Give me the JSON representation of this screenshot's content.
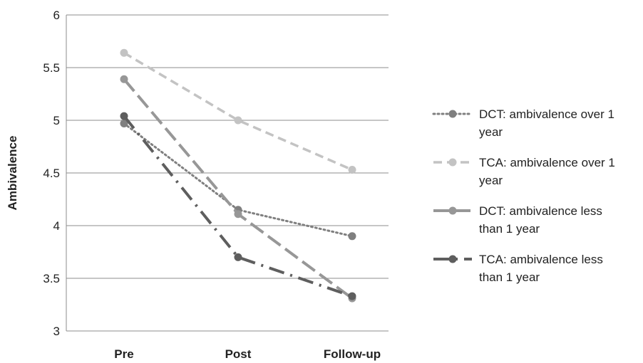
{
  "chart_data": {
    "type": "line",
    "title": "",
    "xlabel": "",
    "ylabel": "Ambivalence",
    "categories": [
      "Pre",
      "Post",
      "Follow-up"
    ],
    "ylim": [
      3,
      6
    ],
    "yticks": [
      "3",
      "3.5",
      "4",
      "4.5",
      "5",
      "5.5",
      "6"
    ],
    "grid": true,
    "legend_position": "right",
    "series": [
      {
        "name": "DCT: ambivalence over 1 year",
        "legend_lines": [
          "DCT: ambivalence over 1",
          "year"
        ],
        "values": [
          4.97,
          4.15,
          3.9
        ],
        "color": "#7f7f7f",
        "style": "dotted"
      },
      {
        "name": "TCA: ambivalence over 1 year",
        "legend_lines": [
          "TCA: ambivalence over 1",
          "year"
        ],
        "values": [
          5.64,
          5.0,
          4.53
        ],
        "color": "#c3c3c3",
        "style": "dashed"
      },
      {
        "name": "DCT: ambivalence less than 1 year",
        "legend_lines": [
          "DCT: ambivalence less",
          "than 1 year"
        ],
        "values": [
          5.39,
          4.11,
          3.31
        ],
        "color": "#979797",
        "style": "long-dash"
      },
      {
        "name": "TCA: ambivalence less than 1 year",
        "legend_lines": [
          "TCA: ambivalence less",
          "than 1 year"
        ],
        "values": [
          5.04,
          3.7,
          3.33
        ],
        "color": "#5e5e5e",
        "style": "dash-dot"
      }
    ]
  }
}
